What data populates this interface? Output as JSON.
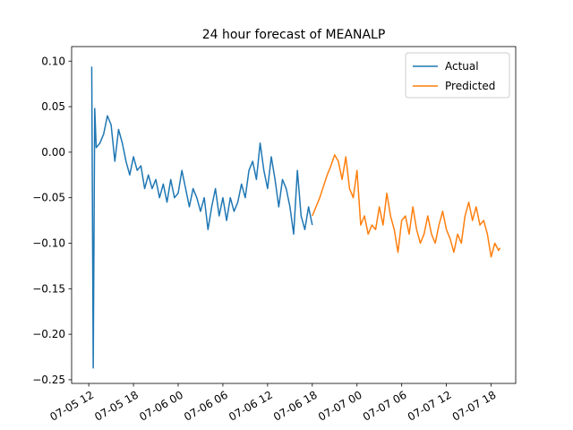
{
  "chart_data": {
    "type": "line",
    "title": "24 hour forecast of MEANALP",
    "xlim": [
      9.7,
      69.3
    ],
    "ylim": [
      -0.254,
      0.116
    ],
    "xticks": [
      {
        "value": 12,
        "label": "07-05 12"
      },
      {
        "value": 18,
        "label": "07-05 18"
      },
      {
        "value": 24,
        "label": "07-06 00"
      },
      {
        "value": 30,
        "label": "07-06 06"
      },
      {
        "value": 36,
        "label": "07-06 12"
      },
      {
        "value": 42,
        "label": "07-06 18"
      },
      {
        "value": 48,
        "label": "07-07 00"
      },
      {
        "value": 54,
        "label": "07-07 06"
      },
      {
        "value": 60,
        "label": "07-07 12"
      },
      {
        "value": 66,
        "label": "07-07 18"
      }
    ],
    "yticks": [
      {
        "value": 0.1,
        "label": "0.10"
      },
      0.05,
      {
        "value": 0,
        "label": "0.00"
      },
      {
        "value": -0.05,
        "label": "−0.05"
      },
      {
        "value": -0.1,
        "label": "−0.10"
      },
      {
        "value": -0.15,
        "label": "−0.15"
      },
      {
        "value": -0.2,
        "label": "−0.20"
      },
      {
        "value": -0.25,
        "label": "−0.25"
      }
    ],
    "legend": "upper right",
    "series": [
      {
        "name": "Actual",
        "color": "#1f77b4",
        "x": [
          12.4,
          12.6,
          12.8,
          13,
          13.5,
          14,
          14.5,
          15,
          15.5,
          16,
          16.5,
          17,
          17.5,
          18,
          18.5,
          19,
          19.5,
          20,
          20.5,
          21,
          21.5,
          22,
          22.5,
          23,
          23.5,
          24,
          24.5,
          25,
          25.5,
          26,
          26.5,
          27,
          27.5,
          28,
          28.5,
          29,
          29.5,
          30,
          30.5,
          31,
          31.5,
          32,
          32.5,
          33,
          33.5,
          34,
          34.5,
          35,
          35.5,
          36,
          36.5,
          37,
          37.5,
          38,
          38.5,
          39,
          39.5,
          40,
          40.5,
          41,
          41.5,
          42
        ],
        "values": [
          0.094,
          -0.237,
          0.048,
          0.005,
          0.01,
          0.02,
          0.04,
          0.03,
          -0.01,
          0.025,
          0.01,
          -0.01,
          -0.025,
          -0.005,
          -0.02,
          -0.015,
          -0.04,
          -0.025,
          -0.04,
          -0.03,
          -0.05,
          -0.035,
          -0.055,
          -0.03,
          -0.05,
          -0.045,
          -0.02,
          -0.04,
          -0.06,
          -0.04,
          -0.05,
          -0.065,
          -0.05,
          -0.085,
          -0.06,
          -0.04,
          -0.07,
          -0.05,
          -0.075,
          -0.05,
          -0.065,
          -0.055,
          -0.035,
          -0.05,
          -0.02,
          -0.01,
          -0.03,
          0.01,
          -0.02,
          -0.04,
          -0.005,
          -0.03,
          -0.06,
          -0.03,
          -0.04,
          -0.06,
          -0.09,
          -0.02,
          -0.07,
          -0.085,
          -0.06,
          -0.08
        ]
      },
      {
        "name": "Predicted",
        "color": "#ff7f0e",
        "x": [
          42,
          43,
          44,
          44.5,
          45,
          45.5,
          46,
          46.5,
          47,
          47.5,
          48,
          48.5,
          49,
          49.5,
          50,
          50.5,
          51,
          51.5,
          52,
          52.5,
          53,
          53.5,
          54,
          54.5,
          55,
          55.5,
          56,
          56.5,
          57,
          57.5,
          58,
          58.5,
          59,
          59.5,
          60,
          60.5,
          61,
          61.5,
          62,
          62.5,
          63,
          63.5,
          64,
          64.5,
          65,
          65.5,
          66,
          66.5,
          67,
          67.2
        ],
        "values": [
          -0.07,
          -0.05,
          -0.025,
          -0.015,
          -0.003,
          -0.01,
          -0.03,
          -0.005,
          -0.04,
          -0.05,
          -0.02,
          -0.08,
          -0.07,
          -0.09,
          -0.08,
          -0.085,
          -0.06,
          -0.08,
          -0.045,
          -0.07,
          -0.085,
          -0.11,
          -0.075,
          -0.07,
          -0.09,
          -0.06,
          -0.085,
          -0.1,
          -0.09,
          -0.07,
          -0.09,
          -0.1,
          -0.08,
          -0.065,
          -0.085,
          -0.095,
          -0.11,
          -0.09,
          -0.1,
          -0.07,
          -0.055,
          -0.075,
          -0.06,
          -0.08,
          -0.075,
          -0.09,
          -0.115,
          -0.1,
          -0.108,
          -0.105
        ]
      }
    ]
  }
}
